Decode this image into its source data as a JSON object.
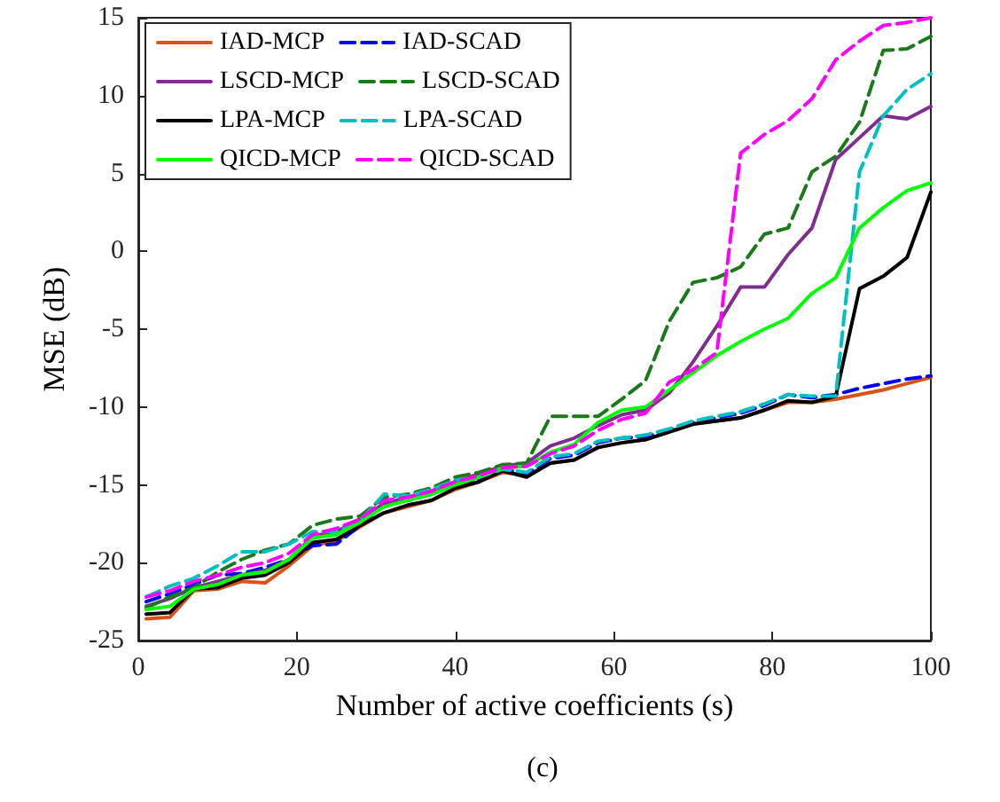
{
  "chart_data": {
    "type": "line",
    "xlabel": "Number of active coefficients (s)",
    "ylabel": "MSE (dB)",
    "annotations": [
      "(c)"
    ],
    "x": [
      1,
      4,
      7,
      10,
      13,
      16,
      19,
      22,
      25,
      28,
      31,
      34,
      37,
      40,
      43,
      46,
      49,
      52,
      55,
      58,
      61,
      64,
      67,
      70,
      73,
      76,
      79,
      82,
      85,
      88,
      91,
      94,
      97,
      100
    ],
    "xlim": [
      0,
      100
    ],
    "xticks": [
      0,
      20,
      40,
      60,
      80,
      100
    ],
    "ylim": [
      -25,
      15
    ],
    "yticks": [
      -25,
      -20,
      -15,
      -10,
      -5,
      0,
      5,
      10,
      15
    ],
    "grid": false,
    "legend": "top left",
    "marker": "none",
    "series": [
      {
        "name": "IAD-MCP",
        "color": "#d95319",
        "line_style": "solid",
        "values": [
          -23.6,
          -23.5,
          -21.8,
          -21.7,
          -21.2,
          -21.3,
          -20.2,
          -18.9,
          -18.6,
          -17.7,
          -16.8,
          -16.4,
          -16,
          -15.3,
          -14.8,
          -14.2,
          -14.4,
          -13.6,
          -13.4,
          -12.6,
          -12.3,
          -12.1,
          -11.6,
          -11.1,
          -10.9,
          -10.7,
          -10.2,
          -9.7,
          -9.7,
          -9.5,
          -9.2,
          -8.9,
          -8.5,
          -8.1
        ]
      },
      {
        "name": "IAD-SCAD",
        "color": "#0000ff",
        "line_style": "dashed",
        "values": [
          -22.5,
          -22,
          -21.4,
          -20.8,
          -20.7,
          -20.3,
          -19.8,
          -18.9,
          -18.8,
          -17.6,
          -16.2,
          -16,
          -15.6,
          -15,
          -14.6,
          -14,
          -14.3,
          -13.3,
          -13.1,
          -12.3,
          -12,
          -11.9,
          -11.5,
          -11,
          -10.7,
          -10.4,
          -9.9,
          -9.2,
          -9.4,
          -9.2,
          -8.8,
          -8.5,
          -8.2,
          -8
        ]
      },
      {
        "name": "LSCD-MCP",
        "color": "#7e2f8e",
        "line_style": "solid",
        "values": [
          -22.8,
          -22.3,
          -21.6,
          -21.2,
          -20.8,
          -20.5,
          -19.8,
          -18.3,
          -18,
          -17.2,
          -16.2,
          -15.8,
          -15.4,
          -14.8,
          -14.3,
          -13.8,
          -13.6,
          -12.5,
          -12,
          -11.2,
          -10.5,
          -10.2,
          -9.1,
          -7.1,
          -4.8,
          -2.3,
          -2.3,
          -0.2,
          1.5,
          5.9,
          7.3,
          8.7,
          8.5,
          9.3
        ]
      },
      {
        "name": "LSCD-SCAD",
        "color": "#1a7a1a",
        "line_style": "dashed",
        "values": [
          -22.9,
          -22.2,
          -21.6,
          -20.6,
          -19.8,
          -19.2,
          -18.8,
          -17.6,
          -17.2,
          -17,
          -15.8,
          -15.6,
          -15.2,
          -14.5,
          -14.2,
          -13.7,
          -13.6,
          -10.6,
          -10.6,
          -10.6,
          -9.5,
          -8.3,
          -4.5,
          -2,
          -1.7,
          -1,
          1.1,
          1.5,
          5.1,
          6.1,
          8.3,
          12.9,
          13,
          13.8
        ]
      },
      {
        "name": "LPA-MCP",
        "color": "#000000",
        "line_style": "solid",
        "values": [
          -23.3,
          -23.2,
          -21.7,
          -21.6,
          -21,
          -20.8,
          -20,
          -18.7,
          -18.5,
          -17.6,
          -16.8,
          -16.3,
          -16,
          -15.2,
          -14.8,
          -14.1,
          -14.5,
          -13.6,
          -13.4,
          -12.6,
          -12.3,
          -12.1,
          -11.6,
          -11.1,
          -10.9,
          -10.7,
          -10.2,
          -9.6,
          -9.7,
          -9.3,
          -2.4,
          -1.6,
          -0.4,
          3.8
        ]
      },
      {
        "name": "LPA-SCAD",
        "color": "#00bfbf",
        "line_style": "dashed",
        "values": [
          -22.2,
          -21.5,
          -21,
          -20.2,
          -19.3,
          -19.3,
          -18.8,
          -18,
          -18,
          -17.3,
          -15.6,
          -15.7,
          -15.3,
          -14.7,
          -14.5,
          -14,
          -14.2,
          -13.2,
          -13,
          -12.2,
          -12,
          -11.8,
          -11.4,
          -10.9,
          -10.6,
          -10.3,
          -9.8,
          -9.2,
          -9.3,
          -9.3,
          5.1,
          8.7,
          10.4,
          11.4
        ]
      },
      {
        "name": "QICD-MCP",
        "color": "#00ff00",
        "line_style": "solid",
        "values": [
          -23,
          -22.8,
          -21.7,
          -21.4,
          -20.8,
          -20.6,
          -19.8,
          -18.4,
          -18.2,
          -17.4,
          -16.4,
          -16,
          -15.6,
          -15,
          -14.5,
          -13.9,
          -13.8,
          -12.9,
          -12.4,
          -11,
          -10.2,
          -10,
          -8.9,
          -7.8,
          -6.7,
          -5.8,
          -5,
          -4.3,
          -2.7,
          -1.7,
          1.5,
          2.8,
          3.9,
          4.4
        ]
      },
      {
        "name": "QICD-SCAD",
        "color": "#ff00ff",
        "line_style": "dashed",
        "values": [
          -22.2,
          -21.8,
          -21.2,
          -20.8,
          -20.3,
          -20,
          -19.4,
          -18.2,
          -17.8,
          -17.2,
          -16,
          -15.8,
          -15.4,
          -14.8,
          -14.4,
          -13.9,
          -13.8,
          -13,
          -12.5,
          -11.5,
          -10.8,
          -10.4,
          -8.4,
          -7.6,
          -6.5,
          6.3,
          7.5,
          8.4,
          9.8,
          12.3,
          13.5,
          14.5,
          14.7,
          15
        ]
      }
    ]
  }
}
